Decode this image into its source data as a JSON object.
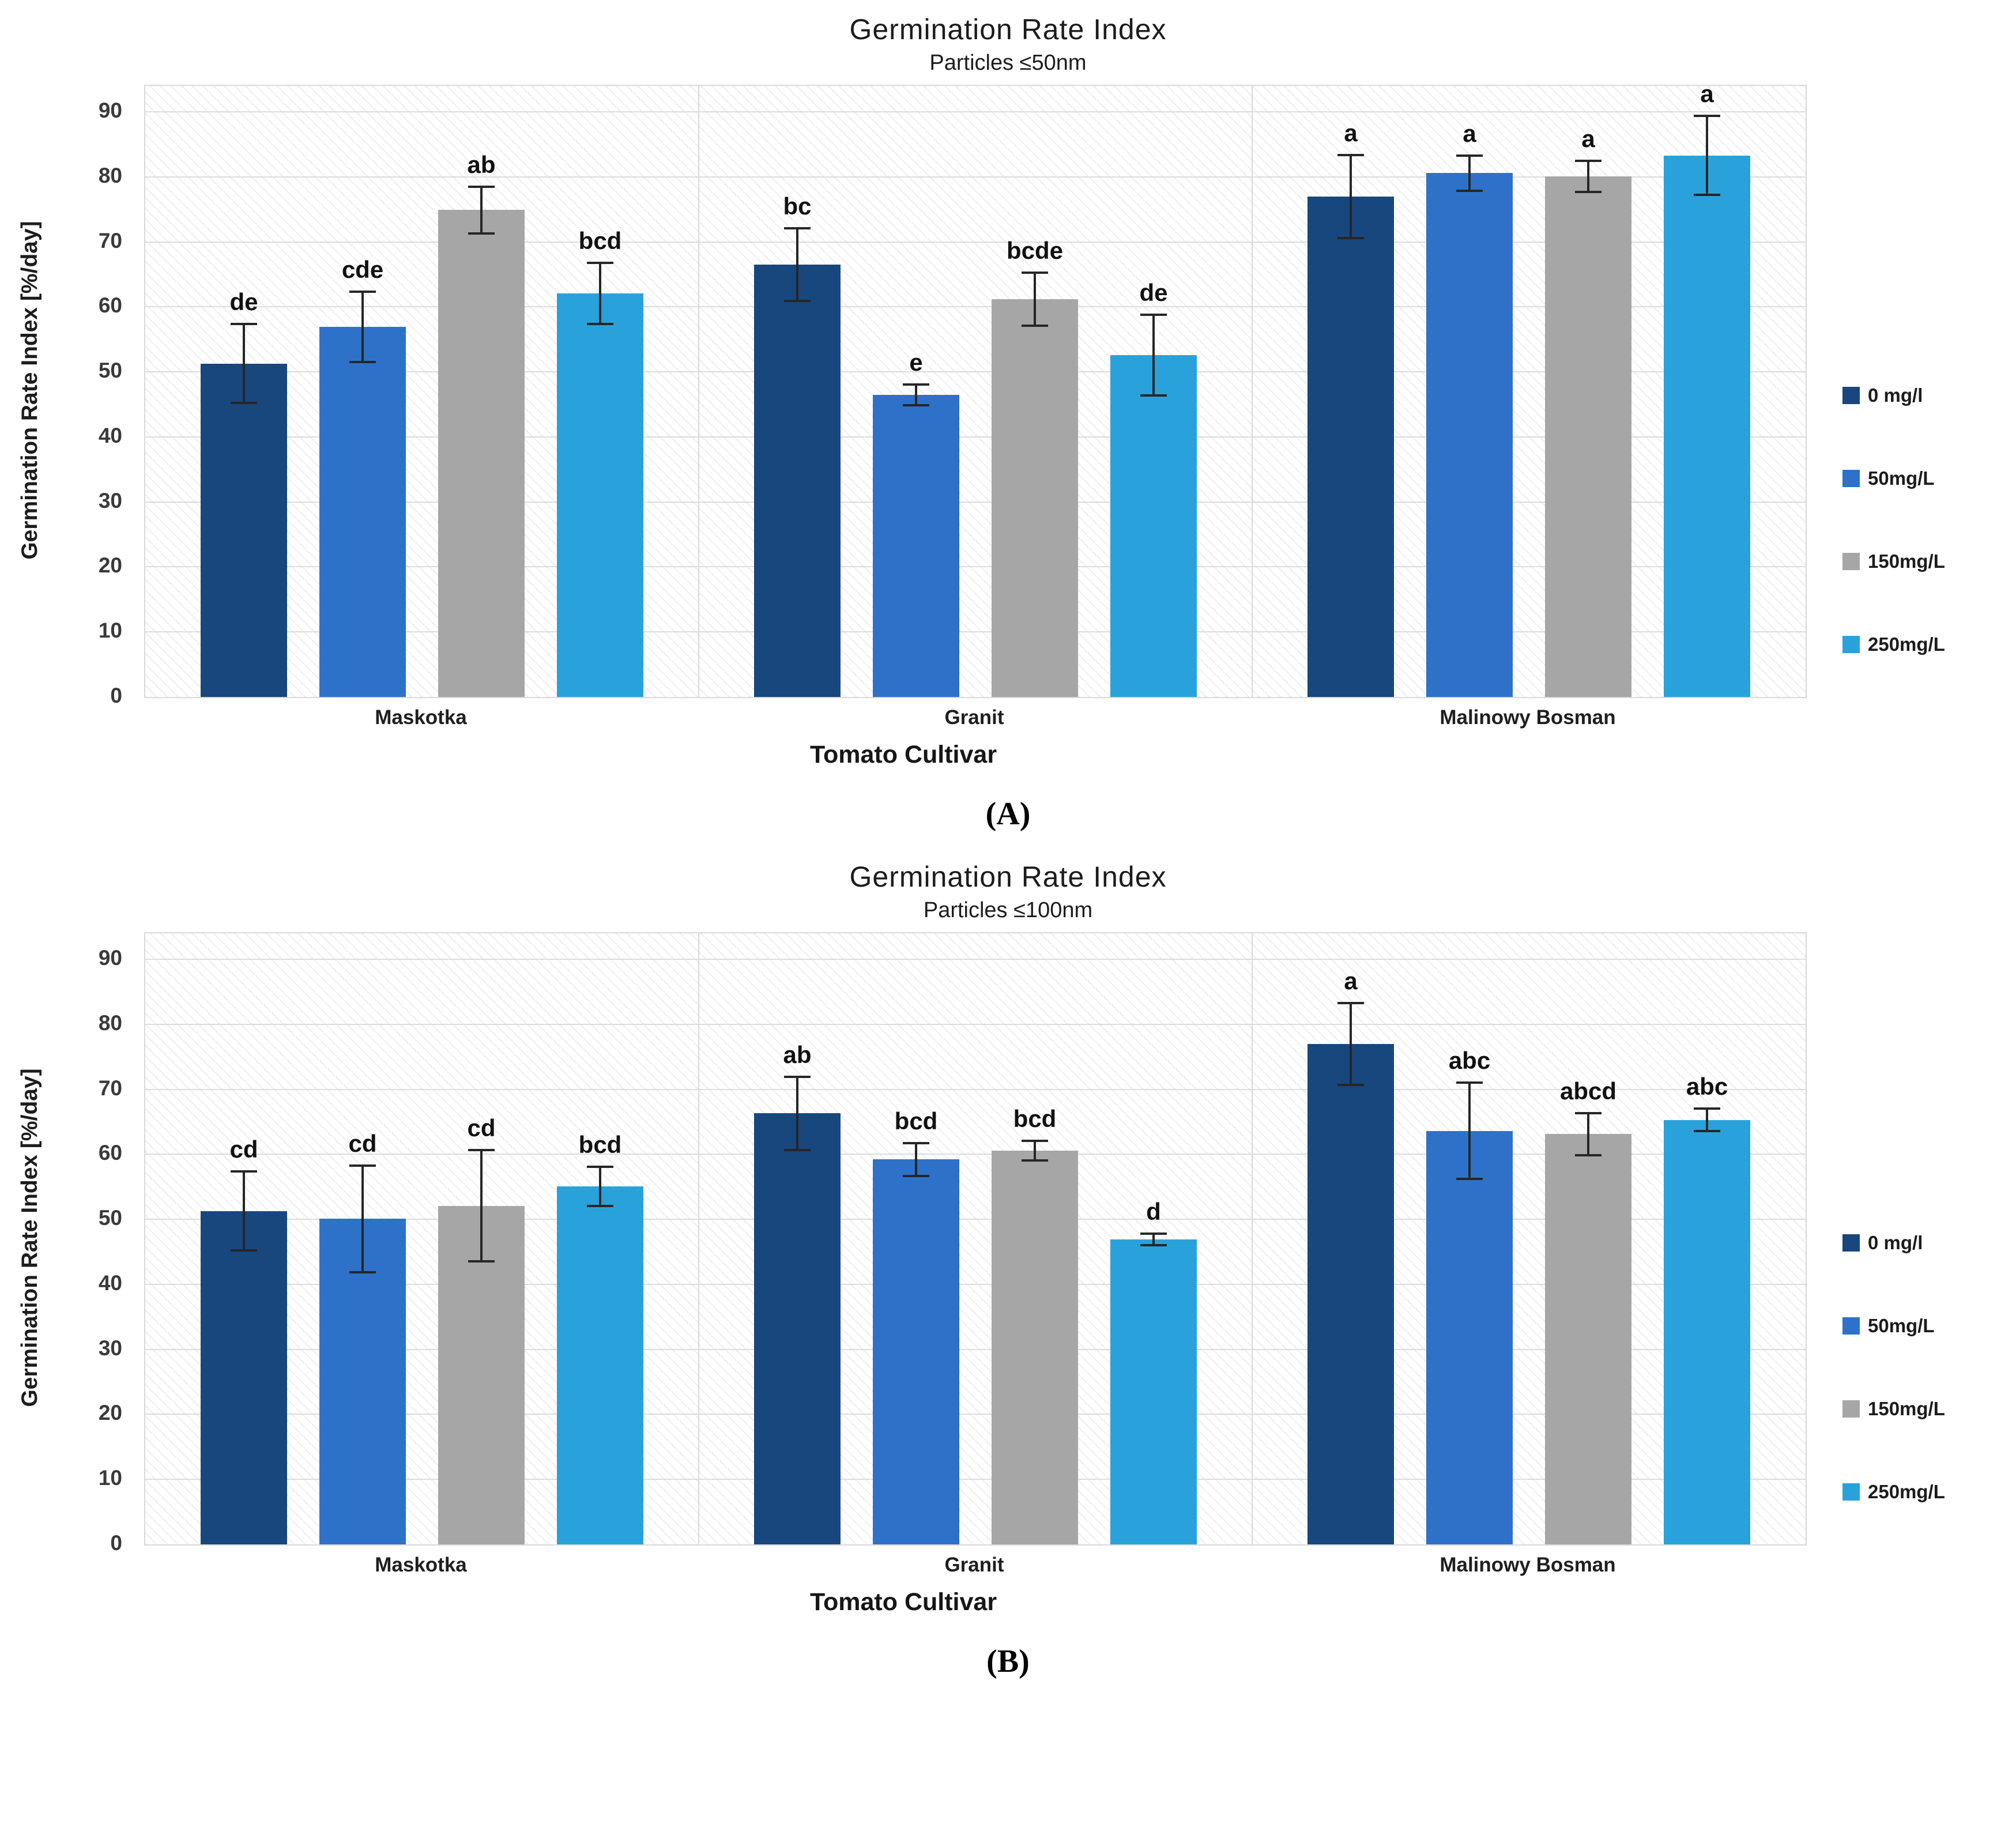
{
  "chart_data": [
    {
      "type": "bar",
      "panel_label": "(A)",
      "title": "Germination Rate Index",
      "subtitle": "Particles ≤50nm",
      "xlabel": "Tomato Cultivar",
      "ylabel": "Germination Rate Index [%/day]",
      "ylim": [
        0,
        94
      ],
      "yticks": [
        0,
        10,
        20,
        30,
        40,
        50,
        60,
        70,
        80,
        90
      ],
      "grid": "horizontal",
      "legend_position": "right",
      "background_pattern": "diagonal-hatch",
      "categories": [
        "Maskotka",
        "Granit",
        "Malinowy Bosman"
      ],
      "series": [
        {
          "name": "0 mg/l",
          "color": "#17477d",
          "values": [
            51.3,
            66.5,
            77.0
          ],
          "errors": [
            6.1,
            5.6,
            6.4
          ],
          "letters": [
            "de",
            "bc",
            "a"
          ]
        },
        {
          "name": "50mg/L",
          "color": "#2d72c8",
          "values": [
            56.9,
            46.5,
            80.6
          ],
          "errors": [
            5.4,
            1.6,
            2.7
          ],
          "letters": [
            "cde",
            "e",
            "a"
          ]
        },
        {
          "name": "150mg/L",
          "color": "#a6a6a6",
          "values": [
            74.9,
            61.2,
            80.1
          ],
          "errors": [
            3.6,
            4.1,
            2.4
          ],
          "letters": [
            "ab",
            "bcde",
            "a"
          ]
        },
        {
          "name": "250mg/L",
          "color": "#29a2db",
          "values": [
            62.1,
            52.6,
            83.3
          ],
          "errors": [
            4.7,
            6.2,
            6.1
          ],
          "letters": [
            "bcd",
            "de",
            "a"
          ]
        }
      ]
    },
    {
      "type": "bar",
      "panel_label": "(B)",
      "title": "Germination Rate Index",
      "subtitle": "Particles ≤100nm",
      "xlabel": "Tomato Cultivar",
      "ylabel": "Germination Rate Index [%/day]",
      "ylim": [
        0,
        94
      ],
      "yticks": [
        0,
        10,
        20,
        30,
        40,
        50,
        60,
        70,
        80,
        90
      ],
      "grid": "horizontal",
      "legend_position": "right",
      "background_pattern": "diagonal-hatch",
      "categories": [
        "Maskotka",
        "Granit",
        "Malinowy Bosman"
      ],
      "series": [
        {
          "name": "0 mg/l",
          "color": "#17477d",
          "values": [
            51.3,
            66.3,
            77.0
          ],
          "errors": [
            6.1,
            5.6,
            6.3
          ],
          "letters": [
            "cd",
            "ab",
            "a"
          ]
        },
        {
          "name": "50mg/L",
          "color": "#2d72c8",
          "values": [
            50.1,
            59.2,
            63.6
          ],
          "errors": [
            8.2,
            2.5,
            7.4
          ],
          "letters": [
            "cd",
            "bcd",
            "abc"
          ]
        },
        {
          "name": "150mg/L",
          "color": "#a6a6a6",
          "values": [
            52.1,
            60.6,
            63.1
          ],
          "errors": [
            8.6,
            1.5,
            3.2
          ],
          "letters": [
            "cd",
            "bcd",
            "abcd"
          ]
        },
        {
          "name": "250mg/L",
          "color": "#29a2db",
          "values": [
            55.1,
            46.9,
            65.3
          ],
          "errors": [
            3.0,
            0.9,
            1.7
          ],
          "letters": [
            "bcd",
            "d",
            "abc"
          ]
        }
      ]
    }
  ]
}
